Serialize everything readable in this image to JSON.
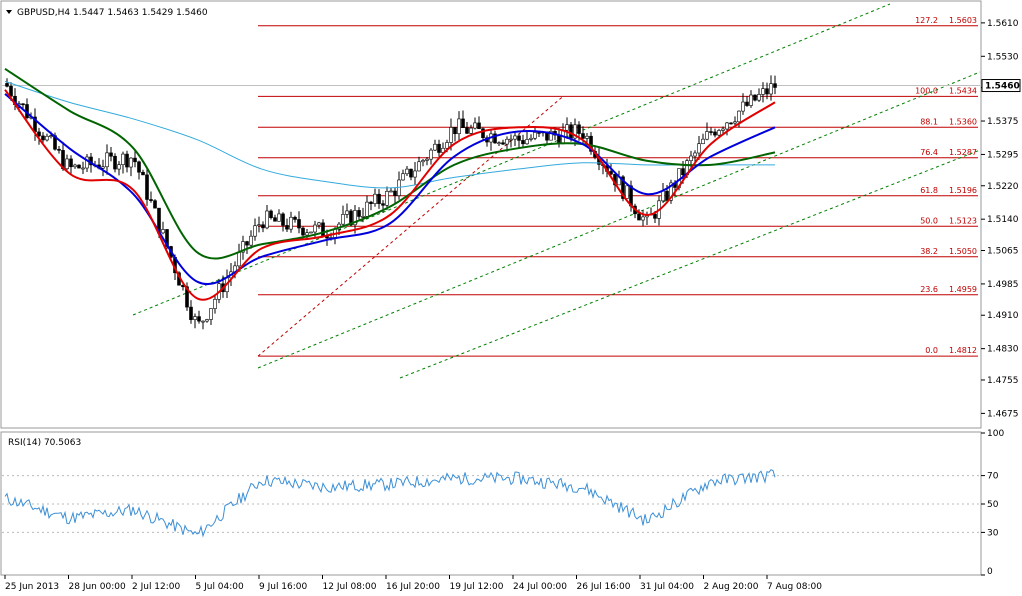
{
  "main_panel": {
    "symbol_header": "GBPUSD,H4  1.5447 1.5463 1.5429 1.5460",
    "current_price": "1.5460",
    "price_axis_labels": [
      "1.5610",
      "1.5530",
      "1.5455",
      "1.5375",
      "1.5295",
      "1.5220",
      "1.5140",
      "1.5065",
      "1.4985",
      "1.4910",
      "1.4830",
      "1.4755",
      "1.4675"
    ]
  },
  "rsi_panel": {
    "header": "RSI(14) 70.5063",
    "axis_labels": [
      "100",
      "70",
      "50",
      "30",
      "0"
    ]
  },
  "time_axis_labels": [
    "25 Jun 2013",
    "28 Jun 00:00",
    "2 Jul 12:00",
    "5 Jul 04:00",
    "9 Jul 16:00",
    "12 Jul 08:00",
    "16 Jul 20:00",
    "19 Jul 12:00",
    "24 Jul 00:00",
    "26 Jul 16:00",
    "31 Jul 04:00",
    "2 Aug 20:00",
    "7 Aug 08:00"
  ],
  "fibonacci_levels": [
    {
      "ratio": "127.2",
      "price": "1.5603",
      "value": 1.5603
    },
    {
      "ratio": "100.0",
      "price": "1.5434",
      "value": 1.5434
    },
    {
      "ratio": "88.1",
      "price": "1.5360",
      "value": 1.536
    },
    {
      "ratio": "76.4",
      "price": "1.5287",
      "value": 1.5287
    },
    {
      "ratio": "61.8",
      "price": "1.5196",
      "value": 1.5196
    },
    {
      "ratio": "50.0",
      "price": "1.5123",
      "value": 1.5123
    },
    {
      "ratio": "38.2",
      "price": "1.5050",
      "value": 1.505
    },
    {
      "ratio": "23.6",
      "price": "1.4959",
      "value": 1.4959
    },
    {
      "ratio": "0.0",
      "price": "1.4812",
      "value": 1.4812
    }
  ],
  "colors": {
    "fib": "#c00000",
    "ema_fast": "#e00000",
    "ema_mid": "#0000dd",
    "ema_slow": "#006400",
    "sma_long": "#33aadd",
    "channel": "#008000",
    "rsi": "#3b8fd6",
    "candle": "#000000"
  },
  "chart_data": {
    "type": "line",
    "title": "GBPUSD,H4",
    "y_axis_range": [
      1.464,
      1.566
    ],
    "rsi_axis_range": [
      0,
      100
    ],
    "x": [
      "25 Jun 2013",
      "28 Jun 00:00",
      "2 Jul 12:00",
      "5 Jul 04:00",
      "9 Jul 16:00",
      "12 Jul 08:00",
      "16 Jul 20:00",
      "19 Jul 12:00",
      "24 Jul 00:00",
      "26 Jul 16:00",
      "31 Jul 04:00",
      "2 Aug 20:00",
      "7 Aug 08:00"
    ],
    "series": [
      {
        "values": [
          1.5465,
          1.526,
          1.529,
          1.488,
          1.514,
          1.511,
          1.52,
          1.536,
          1.533,
          1.535,
          1.513,
          1.535,
          1.546
        ]
      },
      {
        "values": [
          1.545,
          1.525,
          1.521,
          1.495,
          1.507,
          1.51,
          1.515,
          1.532,
          1.536,
          1.533,
          1.515,
          1.532,
          1.542
        ]
      },
      {
        "values": [
          1.544,
          1.531,
          1.52,
          1.499,
          1.505,
          1.509,
          1.513,
          1.529,
          1.535,
          1.532,
          1.52,
          1.529,
          1.536
        ]
      },
      {
        "values": [
          1.55,
          1.54,
          1.531,
          1.506,
          1.508,
          1.511,
          1.517,
          1.527,
          1.531,
          1.532,
          1.528,
          1.527,
          1.53
        ]
      },
      {
        "values": [
          1.547,
          1.542,
          1.538,
          1.533,
          1.526,
          1.523,
          1.5215,
          1.524,
          1.526,
          1.5275,
          1.527,
          1.527,
          1.527
        ]
      },
      {
        "values": [
          54,
          40,
          46,
          28,
          67,
          62,
          64,
          68,
          68,
          62,
          38,
          66,
          70.5
        ]
      }
    ]
  }
}
